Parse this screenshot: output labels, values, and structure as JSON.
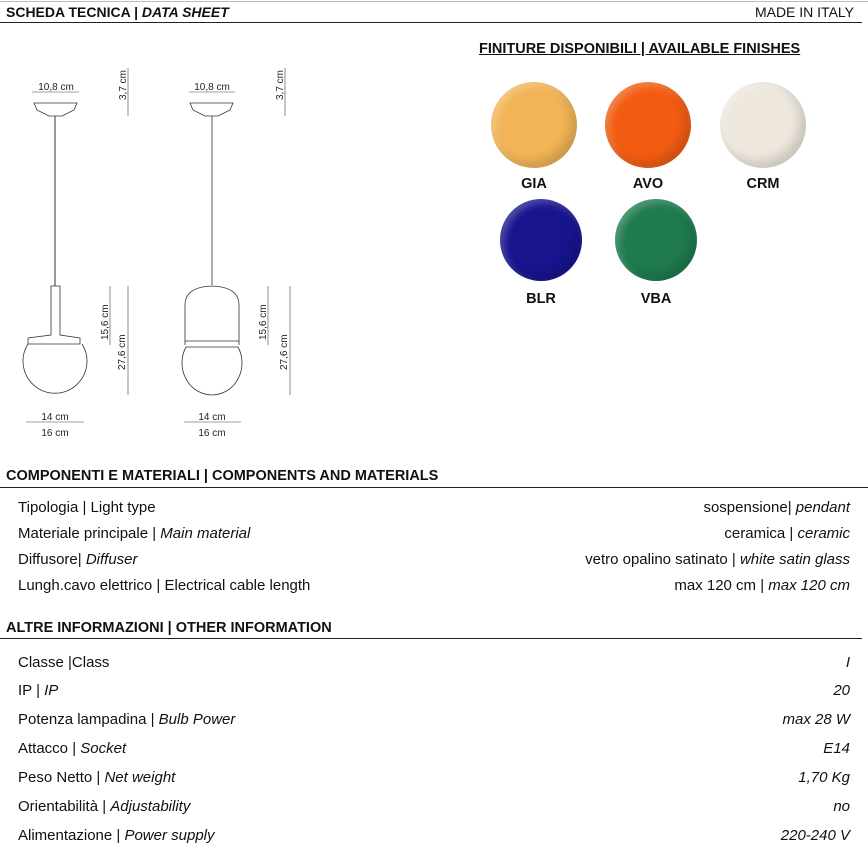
{
  "header": {
    "title": "SCHEDA TECNICA",
    "title_sep": " | ",
    "title_en": "DATA SHEET",
    "made_in": "MADE IN ITALY"
  },
  "drawing": {
    "canopy_width": "10,8 cm",
    "canopy_height": "3,7 cm",
    "shade_height": "15,6 cm",
    "total_height": "27,6 cm",
    "inner_width": "14 cm",
    "outer_width": "16 cm"
  },
  "finishes": {
    "title": "FINITURE DISPONIBILI | AVAILABLE FINISHES",
    "items": [
      {
        "code": "GIA",
        "color": "#f2b456"
      },
      {
        "code": "AVO",
        "color": "#f25c12"
      },
      {
        "code": "CRM",
        "color": "#ede7dd"
      },
      {
        "code": "BLR",
        "color": "#17148e"
      },
      {
        "code": "VBA",
        "color": "#1f7a4c"
      }
    ]
  },
  "components": {
    "title": "COMPONENTI E MATERIALI | COMPONENTS AND MATERIALS",
    "rows": [
      {
        "label": "Tipologia | ",
        "label_en": "Light type",
        "label_en_italic": false,
        "value": "sospensione| ",
        "value_en": "pendant"
      },
      {
        "label": "Materiale principale | ",
        "label_en": "Main material",
        "label_en_italic": true,
        "value": "ceramica | ",
        "value_en": "ceramic"
      },
      {
        "label": "Diffusore| ",
        "label_en": "Diffuser",
        "label_en_italic": true,
        "value": "vetro opalino satinato | ",
        "value_en": "white satin glass"
      },
      {
        "label": "Lungh.cavo elettrico | ",
        "label_en": "Electrical cable length",
        "label_en_italic": false,
        "value": "max 120 cm | ",
        "value_en": "max 120 cm"
      }
    ]
  },
  "other": {
    "title": "ALTRE INFORMAZIONI | OTHER INFORMATION",
    "rows": [
      {
        "label": "Classe |",
        "label_en": "Class",
        "label_en_italic": false,
        "value": "I"
      },
      {
        "label": "IP | ",
        "label_en": "IP",
        "label_en_italic": true,
        "value": "20"
      },
      {
        "label": "Potenza lampadina | ",
        "label_en": "Bulb Power",
        "label_en_italic": true,
        "value": "max  28  W"
      },
      {
        "label": "Attacco | ",
        "label_en": "Socket",
        "label_en_italic": true,
        "value": "E14"
      },
      {
        "label": "Peso Netto | ",
        "label_en": "Net weight",
        "label_en_italic": true,
        "value": "1,70  Kg"
      },
      {
        "label": "Orientabilità | ",
        "label_en": "Adjustability",
        "label_en_italic": true,
        "value": "no"
      },
      {
        "label": "Alimentazione | ",
        "label_en": "Power supply",
        "label_en_italic": true,
        "value": "220-240 V"
      }
    ]
  }
}
